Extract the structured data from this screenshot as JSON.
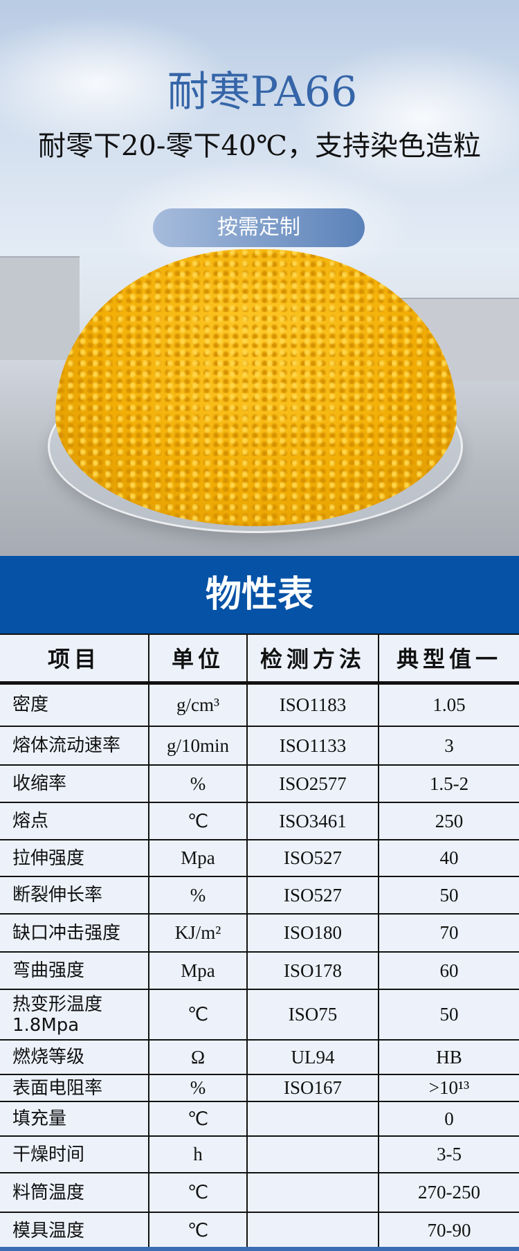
{
  "hero": {
    "title": "耐寒PA66",
    "subtitle": "耐零下20-零下40℃，支持染色造粒",
    "cta_label": "按需定制"
  },
  "section_title": "物性表",
  "table": {
    "headers": [
      "项目",
      "单位",
      "检测方法",
      "典型值一"
    ],
    "rows": [
      {
        "item": "密度",
        "unit": "g/cm³",
        "method": "ISO1183",
        "value": "1.05"
      },
      {
        "item": "熔体流动速率",
        "unit": "g/10min",
        "method": "ISO1133",
        "value": "3"
      },
      {
        "item": "收缩率",
        "unit": "%",
        "method": "ISO2577",
        "value": "1.5-2"
      },
      {
        "item": "熔点",
        "unit": "℃",
        "method": "ISO3461",
        "value": "250"
      },
      {
        "item": "拉伸强度",
        "unit": "Mpa",
        "method": "ISO527",
        "value": "40"
      },
      {
        "item": "断裂伸长率",
        "unit": "%",
        "method": "ISO527",
        "value": "50"
      },
      {
        "item": "缺口冲击强度",
        "unit": "KJ/m²",
        "method": "ISO180",
        "value": "70"
      },
      {
        "item": "弯曲强度",
        "unit": "Mpa",
        "method": "ISO178",
        "value": "60"
      },
      {
        "item": "热变形温度\n1.8Mpa",
        "unit": "℃",
        "method": "ISO75",
        "value": "50"
      },
      {
        "item": "燃烧等级",
        "unit": "Ω",
        "method": "UL94",
        "value": "HB"
      },
      {
        "item": "表面电阻率",
        "unit": "%",
        "method": "ISO167",
        "value": ">10¹³"
      },
      {
        "item": "填充量",
        "unit": "℃",
        "method": "",
        "value": "0"
      },
      {
        "item": "干燥时间",
        "unit": "h",
        "method": "",
        "value": "3-5"
      },
      {
        "item": "料筒温度",
        "unit": "℃",
        "method": "",
        "value": "270-250"
      },
      {
        "item": "模具温度",
        "unit": "℃",
        "method": "",
        "value": "70-90"
      }
    ]
  },
  "colors": {
    "title_blue": "#3565a8",
    "band_blue": "#0552a6",
    "table_bg": "#edf2fa",
    "pellet_yellow": "#f2ae05"
  }
}
